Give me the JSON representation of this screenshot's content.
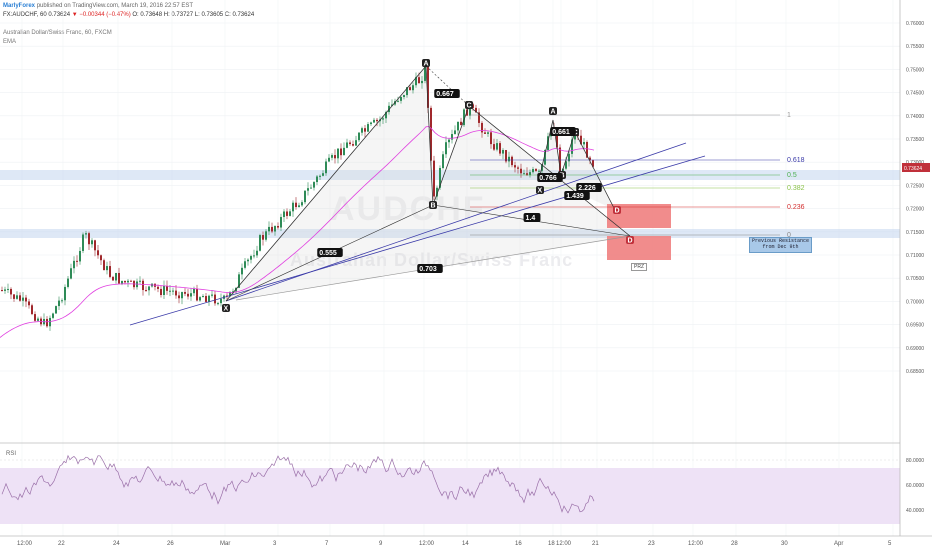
{
  "header": {
    "brand": "MarlyForex",
    "published": "published on TradingView.com, March 19, 2016 22:57 EST",
    "symbol": "FX:AUDCHF, 60",
    "last": "0.73624",
    "change": "▼ −0.00344 (−0.47%)",
    "ohlc": "O: 0.73648 H: 0.73727 L: 0.73605 C: 0.73624",
    "instrument": "Australian Dollar/Swiss Franc, 60, FXCM",
    "indicator": "EMA"
  },
  "price_axis": {
    "labels": [
      "0.76000",
      "0.75500",
      "0.75000",
      "0.74500",
      "0.74000",
      "0.73500",
      "0.73000",
      "0.72500",
      "0.72000",
      "0.71500",
      "0.71000",
      "0.70500",
      "0.70000",
      "0.69500",
      "0.69000",
      "0.68500"
    ],
    "current": "0.73624"
  },
  "rsi_axis": {
    "labels": [
      "80.0000",
      "60.0000",
      "40.0000"
    ]
  },
  "time_axis": {
    "labels": [
      "12:00",
      "22",
      "24",
      "26",
      "Mar",
      "3",
      "7",
      "9",
      "12:00",
      "14",
      "16",
      "18",
      "12:00",
      "21",
      "23",
      "12:00",
      "28",
      "30",
      "Apr",
      "5"
    ]
  },
  "pattern_points": [
    "A",
    "C",
    "B",
    "X",
    "A",
    "C",
    "B",
    "X",
    "D",
    "D"
  ],
  "ratios": [
    "0.667",
    "0.555",
    "0.703",
    "1.4",
    "0.661",
    "0.766",
    "2.226",
    "1.439"
  ],
  "fib": {
    "l1": "1",
    "l0618": "0.618",
    "l05": "0.5",
    "l0382": "0.382",
    "l0236": "0.236",
    "l0": "0"
  },
  "note": {
    "line1": "Previous Resistance",
    "line2": "from Dec 9th"
  },
  "prz": "PRZ",
  "rsi_label": "RSI",
  "watermark_big": "AUDCHF",
  "watermark_small": "Australian Dollar/Swiss Franc",
  "colors": {
    "up": "#2e8b57",
    "down": "#a0282c",
    "ema": "#e040e0",
    "rsi": "#9a6fa8",
    "zone": "#f08080",
    "trend": "#3a3aa8"
  }
}
